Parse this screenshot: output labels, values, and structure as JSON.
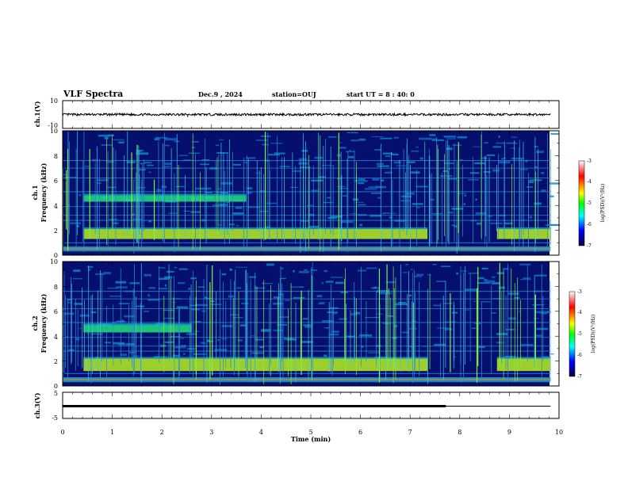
{
  "header": {
    "title": "VLF Spectra",
    "date": "Dec.9 , 2024",
    "station": "station=OUJ",
    "start": "start UT = 8 : 40: 0"
  },
  "chart_data": [
    {
      "type": "line",
      "name": "ch.1 waveform",
      "ylabel": "ch.1(V)",
      "ylim": [
        -10,
        10
      ],
      "yticks": [
        "10",
        "-10"
      ],
      "xlim": [
        0,
        10
      ],
      "trace_level": 0,
      "trace_end": 9.83,
      "spikes": [
        {
          "x": 2.52,
          "y": -1.9
        }
      ]
    },
    {
      "type": "heatmap",
      "name": "ch.1 spectrogram",
      "ylabel": "ch.1 Frequency (kHz)",
      "ylabel_top": "ch.1",
      "ylabel_bottom": "Frequency (kHz)",
      "ylim": [
        0,
        10
      ],
      "yticks": [
        "0",
        "2",
        "4",
        "6",
        "8",
        "10"
      ],
      "xlim": [
        0,
        10
      ],
      "data_end": 9.83,
      "bands": [
        {
          "x0": 0.42,
          "x1": 3.7,
          "f0": 4.3,
          "f1": 4.8,
          "level": "green"
        },
        {
          "x0": 0.42,
          "x1": 7.35,
          "f0": 1.3,
          "f1": 2.1,
          "level": "yellow"
        },
        {
          "x0": 8.75,
          "x1": 9.83,
          "f0": 1.3,
          "f1": 2.1,
          "level": "yellow"
        }
      ],
      "colorbar": {
        "label": "log(PSD)(V²/Hz)",
        "ticks": [
          "-3",
          "-4",
          "-5",
          "-6",
          "-7"
        ],
        "range": [
          -7,
          -3
        ]
      }
    },
    {
      "type": "heatmap",
      "name": "ch.2 spectrogram",
      "ylabel": "ch.2 Frequency (kHz)",
      "ylabel_top": "ch.2",
      "ylabel_bottom": "Frequency (kHz)",
      "ylim": [
        0,
        10
      ],
      "yticks": [
        "0",
        "2",
        "4",
        "6",
        "8",
        "10"
      ],
      "xlim": [
        0,
        10
      ],
      "data_end": 9.83,
      "bands": [
        {
          "x0": 0.42,
          "x1": 2.6,
          "f0": 4.3,
          "f1": 4.9,
          "level": "green"
        },
        {
          "x0": 0.42,
          "x1": 7.35,
          "f0": 1.2,
          "f1": 2.2,
          "level": "yellow"
        },
        {
          "x0": 8.75,
          "x1": 9.83,
          "f0": 1.2,
          "f1": 2.2,
          "level": "yellow"
        }
      ],
      "colorbar": {
        "label": "log(PSD)(V²/Hz)",
        "ticks": [
          "-3",
          "-4",
          "-5",
          "-6",
          "-7"
        ],
        "range": [
          -7,
          -3
        ]
      }
    },
    {
      "type": "line",
      "name": "ch.3 level",
      "ylabel": "ch.3(V)",
      "ylim": [
        -5,
        5
      ],
      "yticks": [
        "5",
        "-5"
      ],
      "xlim": [
        0,
        10
      ],
      "thick_end": 7.72,
      "trace_end": 9.83,
      "level": -0.3
    }
  ],
  "xaxis": {
    "label": "Time (min)",
    "ticks": [
      "0",
      "1",
      "2",
      "3",
      "4",
      "5",
      "6",
      "7",
      "8",
      "9",
      "10"
    ],
    "range": [
      0,
      10
    ]
  }
}
